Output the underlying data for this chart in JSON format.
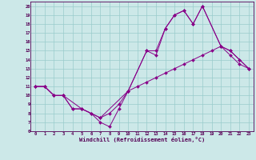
{
  "title": "",
  "xlabel": "Windchill (Refroidissement éolien,°C)",
  "bg_color": "#cce8e8",
  "line_color": "#880088",
  "grid_color": "#99cccc",
  "xlim": [
    -0.5,
    23.5
  ],
  "ylim": [
    6,
    20.5
  ],
  "xticks": [
    0,
    1,
    2,
    3,
    4,
    5,
    6,
    7,
    8,
    9,
    10,
    11,
    12,
    13,
    14,
    15,
    16,
    17,
    18,
    19,
    20,
    21,
    22,
    23
  ],
  "yticks": [
    6,
    7,
    8,
    9,
    10,
    11,
    12,
    13,
    14,
    15,
    16,
    17,
    18,
    19,
    20
  ],
  "series": [
    {
      "x": [
        0,
        1,
        2,
        3,
        5,
        7,
        10,
        12,
        13,
        14,
        15,
        16,
        17,
        18,
        20,
        21,
        22,
        23
      ],
      "y": [
        11,
        11,
        10,
        10,
        8.5,
        7.5,
        10.5,
        15,
        14.5,
        17.5,
        19,
        19.5,
        18,
        20,
        15.5,
        15,
        14,
        13
      ]
    },
    {
      "x": [
        0,
        1,
        2,
        3,
        4,
        5,
        6,
        7,
        8,
        9,
        10,
        11,
        12,
        13,
        14,
        15,
        16,
        17,
        18,
        19,
        20,
        21,
        22,
        23
      ],
      "y": [
        11,
        11,
        10,
        10,
        8.5,
        8.5,
        8,
        7.5,
        8,
        9,
        10.5,
        11,
        11.5,
        12,
        12.5,
        13,
        13.5,
        14,
        14.5,
        15,
        15.5,
        14.5,
        13.5,
        13
      ]
    },
    {
      "x": [
        0,
        1,
        2,
        3,
        4,
        5,
        6,
        7,
        8,
        9,
        10,
        12,
        13,
        14,
        15,
        16,
        17,
        18,
        20,
        21,
        22,
        23
      ],
      "y": [
        11,
        11,
        10,
        10,
        8.5,
        8.5,
        8,
        7,
        6.5,
        8.5,
        10.5,
        15,
        15,
        17.5,
        19,
        19.5,
        18,
        20,
        15.5,
        15,
        14,
        13
      ]
    }
  ]
}
